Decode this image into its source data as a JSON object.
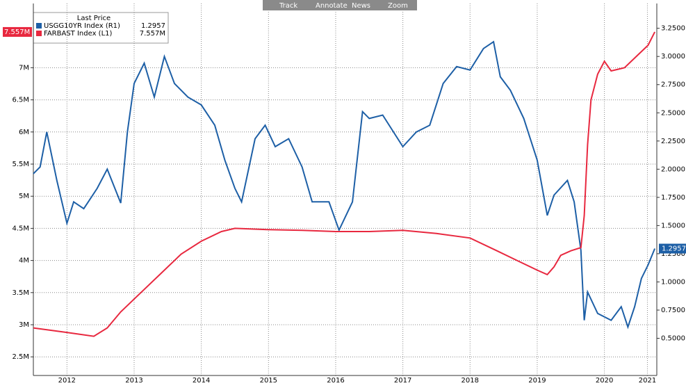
{
  "chart_data": {
    "type": "line",
    "toolbar": [
      "Track",
      "Annotate",
      "News",
      "Zoom"
    ],
    "legend_title": "Last Price",
    "xlim": [
      2012,
      2021.28
    ],
    "xticks": [
      {
        "value": 2012.5,
        "label": "2012"
      },
      {
        "value": 2013.5,
        "label": "2013"
      },
      {
        "value": 2014.5,
        "label": "2014"
      },
      {
        "value": 2015.5,
        "label": "2015"
      },
      {
        "value": 2016.5,
        "label": "2016"
      },
      {
        "value": 2017.5,
        "label": "2017"
      },
      {
        "value": 2018.5,
        "label": "2018"
      },
      {
        "value": 2019.5,
        "label": "2019"
      },
      {
        "value": 2020.5,
        "label": "2020"
      },
      {
        "value": 2021.14,
        "label": "2021"
      }
    ],
    "ylim": [
      2.21,
      8.0
    ],
    "yticks": [
      {
        "value": 2.5,
        "label": "2.5M"
      },
      {
        "value": 3,
        "label": "3M"
      },
      {
        "value": 3.5,
        "label": "3.5M"
      },
      {
        "value": 4,
        "label": "4M"
      },
      {
        "value": 4.5,
        "label": "4.5M"
      },
      {
        "value": 5,
        "label": "5M"
      },
      {
        "value": 5.5,
        "label": "5.5M"
      },
      {
        "value": 6,
        "label": "6M"
      },
      {
        "value": 6.5,
        "label": "6.5M"
      },
      {
        "value": 7,
        "label": "7M"
      }
    ],
    "y2lim": [
      0.17,
      3.47
    ],
    "y2ticks": [
      {
        "value": 0.5,
        "label": "0.5000"
      },
      {
        "value": 0.75,
        "label": "0.7500"
      },
      {
        "value": 1,
        "label": "1.0000"
      },
      {
        "value": 1.25,
        "label": "1.2500"
      },
      {
        "value": 1.5,
        "label": "1.5000"
      },
      {
        "value": 1.75,
        "label": "1.7500"
      },
      {
        "value": 2,
        "label": "2.0000"
      },
      {
        "value": 2.25,
        "label": "2.2500"
      },
      {
        "value": 2.5,
        "label": "2.5000"
      },
      {
        "value": 2.75,
        "label": "2.7500"
      },
      {
        "value": 3,
        "label": "3.0000"
      },
      {
        "value": 3.25,
        "label": "3.2500"
      }
    ],
    "grid": true,
    "series": [
      {
        "name": "USGG10YR Index  (R1)",
        "color": "#1d5fa6",
        "axis": "y2",
        "last_label": "1.2957",
        "x": [
          2012.0,
          2012.1,
          2012.2,
          2012.35,
          2012.5,
          2012.6,
          2012.75,
          2012.95,
          2013.1,
          2013.3,
          2013.4,
          2013.5,
          2013.65,
          2013.8,
          2013.95,
          2014.1,
          2014.3,
          2014.5,
          2014.7,
          2014.85,
          2015.0,
          2015.1,
          2015.3,
          2015.45,
          2015.6,
          2015.8,
          2016.0,
          2016.15,
          2016.4,
          2016.55,
          2016.75,
          2016.9,
          2017.0,
          2017.2,
          2017.5,
          2017.7,
          2017.9,
          2018.1,
          2018.3,
          2018.5,
          2018.7,
          2018.85,
          2018.95,
          2019.1,
          2019.3,
          2019.5,
          2019.65,
          2019.75,
          2019.95,
          2020.05,
          2020.15,
          2020.2,
          2020.25,
          2020.4,
          2020.6,
          2020.75,
          2020.85,
          2020.95,
          2021.05,
          2021.15,
          2021.25
        ],
        "values": [
          1.96,
          2.02,
          2.33,
          1.9,
          1.52,
          1.71,
          1.65,
          1.83,
          2.0,
          1.7,
          2.33,
          2.76,
          2.94,
          2.64,
          3.0,
          2.76,
          2.64,
          2.57,
          2.39,
          2.08,
          1.83,
          1.71,
          2.27,
          2.39,
          2.2,
          2.27,
          2.02,
          1.71,
          1.71,
          1.46,
          1.71,
          2.51,
          2.45,
          2.48,
          2.2,
          2.33,
          2.39,
          2.76,
          2.91,
          2.88,
          3.07,
          3.13,
          2.82,
          2.7,
          2.45,
          2.08,
          1.59,
          1.77,
          1.9,
          1.71,
          1.28,
          0.66,
          0.91,
          0.72,
          0.66,
          0.78,
          0.6,
          0.78,
          1.03,
          1.15,
          1.2957
        ]
      },
      {
        "name": "FARBAST Index  (L1)",
        "color": "#e8283f",
        "last_label": "7.557M",
        "x": [
          2012.0,
          2012.5,
          2012.9,
          2013.1,
          2013.3,
          2013.6,
          2013.9,
          2014.2,
          2014.5,
          2014.8,
          2015.0,
          2015.5,
          2016.0,
          2016.5,
          2017.0,
          2017.5,
          2018.0,
          2018.5,
          2018.9,
          2019.2,
          2019.5,
          2019.65,
          2019.75,
          2019.85,
          2020.0,
          2020.15,
          2020.2,
          2020.25,
          2020.3,
          2020.4,
          2020.5,
          2020.6,
          2020.8,
          2021.0,
          2021.15,
          2021.25
        ],
        "values": [
          2.95,
          2.88,
          2.82,
          2.95,
          3.2,
          3.5,
          3.8,
          4.1,
          4.3,
          4.45,
          4.5,
          4.48,
          4.47,
          4.45,
          4.45,
          4.47,
          4.42,
          4.35,
          4.15,
          4.0,
          3.85,
          3.78,
          3.9,
          4.08,
          4.15,
          4.2,
          4.7,
          5.8,
          6.5,
          6.9,
          7.1,
          6.95,
          7.0,
          7.2,
          7.35,
          7.557
        ]
      }
    ]
  }
}
